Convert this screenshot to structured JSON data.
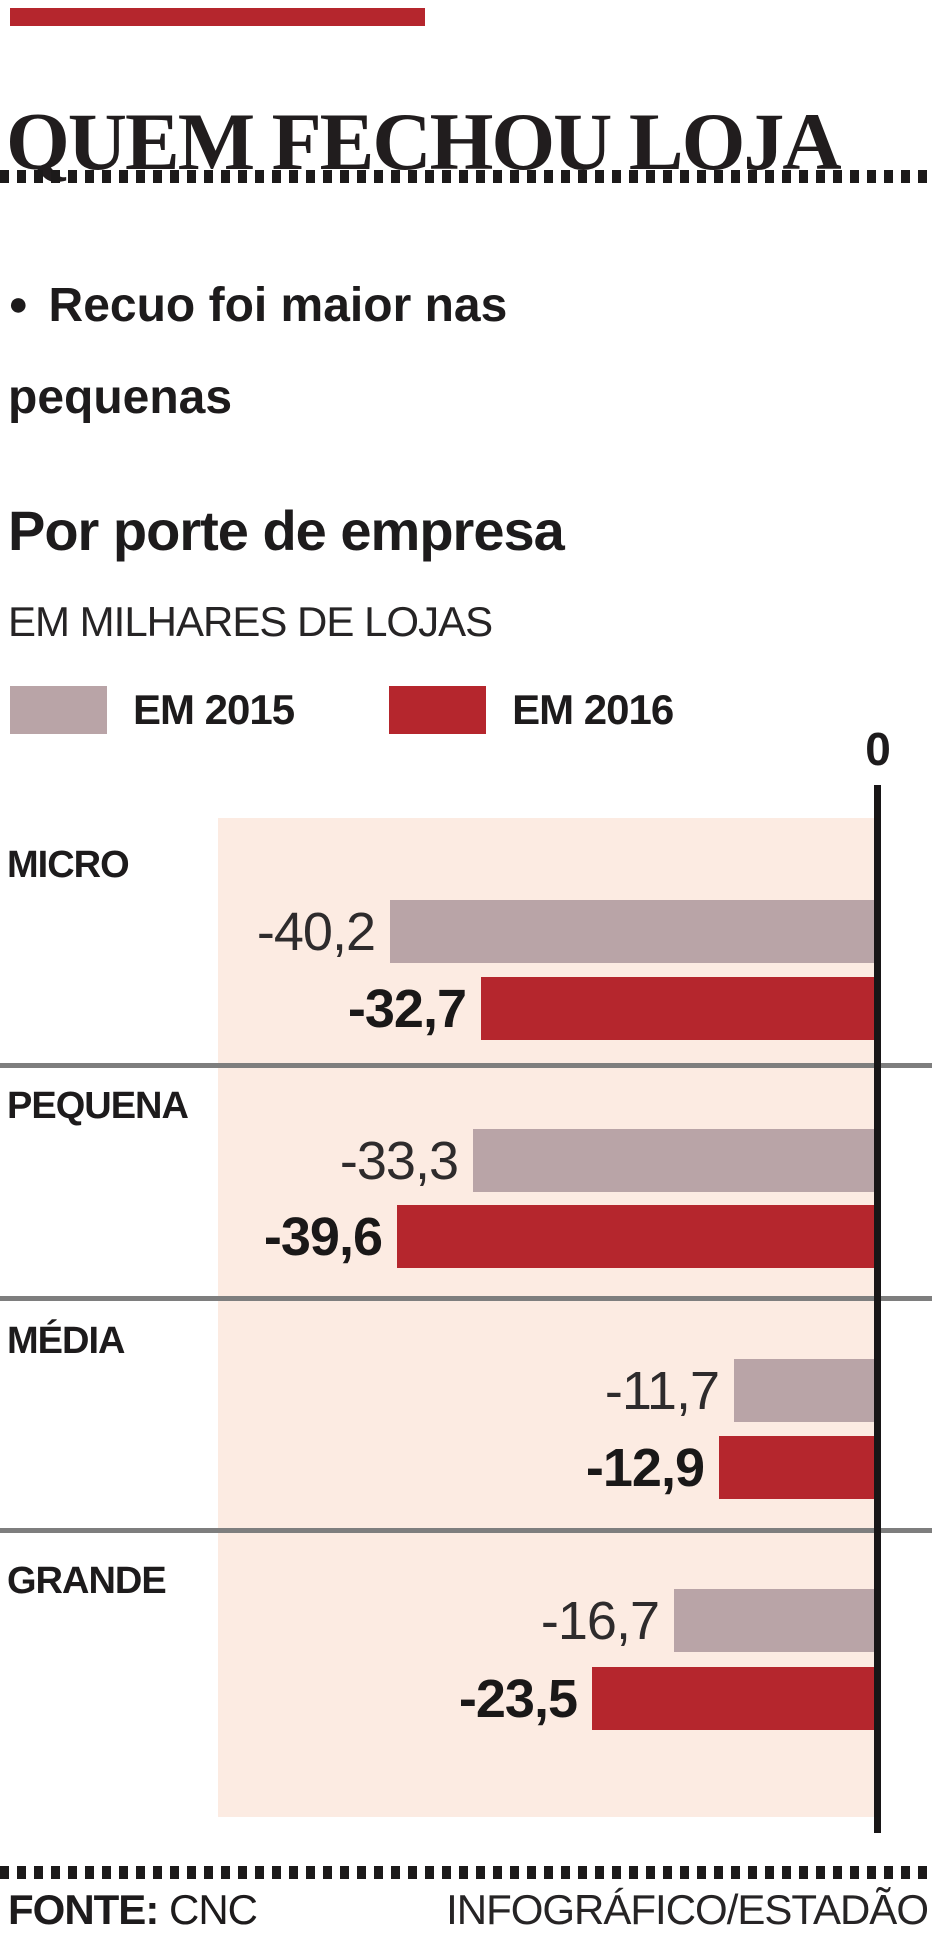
{
  "header": {
    "accent_color": "#b5262d",
    "title": "QUEM FECHOU LOJA"
  },
  "highlight": {
    "bullet": "●",
    "text": "Recuo foi maior nas pequenas"
  },
  "chart": {
    "title": "Por porte de empresa",
    "subtitle": "EM MILHARES DE LOJAS",
    "legend": [
      {
        "label": "EM 2015",
        "color": "#b9a4a7"
      },
      {
        "label": "EM 2016",
        "color": "#b5262d"
      }
    ]
  },
  "chart_data": {
    "type": "bar",
    "orientation": "horizontal",
    "title": "Por porte de empresa",
    "units": "EM MILHARES DE LOJAS",
    "categories": [
      "MICRO",
      "PEQUENA",
      "MÉDIA",
      "GRANDE"
    ],
    "series": [
      {
        "name": "EM 2015",
        "color": "#b9a4a7",
        "values": [
          -40.2,
          -33.3,
          -11.7,
          -16.7
        ],
        "labels": [
          "-40,2",
          "-33,3",
          "-11,7",
          "-16,7"
        ]
      },
      {
        "name": "EM 2016",
        "color": "#b5262d",
        "values": [
          -32.7,
          -39.6,
          -12.9,
          -23.5
        ],
        "labels": [
          "-32,7",
          "-39,6",
          "-12,9",
          "-23,5"
        ]
      }
    ],
    "axis": {
      "zero_label": "0",
      "xlim": [
        -45,
        0
      ],
      "zero_at_right": true
    },
    "plot_background": "#fcebe2",
    "legend_position": "top-left",
    "grid": false
  },
  "footer": {
    "source_label": "FONTE:",
    "source_value": "CNC",
    "credit": "INFOGRÁFICO/ESTADÃO"
  }
}
